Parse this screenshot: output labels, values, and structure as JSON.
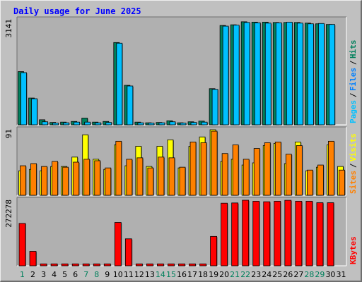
{
  "chart_data": {
    "type": "bar",
    "title": "Daily usage for June 2025",
    "x": [
      "1",
      "2",
      "3",
      "4",
      "5",
      "6",
      "7",
      "8",
      "9",
      "10",
      "11",
      "12",
      "13",
      "14",
      "15",
      "16",
      "17",
      "18",
      "19",
      "20",
      "21",
      "22",
      "23",
      "24",
      "25",
      "26",
      "27",
      "28",
      "29",
      "30",
      "31"
    ],
    "weekend_days": [
      1,
      7,
      8,
      14,
      15,
      21,
      22,
      28,
      29
    ],
    "panels": [
      {
        "id": "hits_files_pages",
        "max_label": "3141",
        "ymax": 3141,
        "legend": [
          {
            "name": "Pages",
            "color": "#00c0ff"
          },
          {
            "name": "Files",
            "color": "#0080ff"
          },
          {
            "name": "Hits",
            "color": "#00805c"
          }
        ],
        "series": [
          {
            "name": "Hits",
            "color": "#00805c",
            "values": [
              1590,
              800,
              150,
              70,
              80,
              100,
              200,
              80,
              100,
              2460,
              1180,
              80,
              60,
              70,
              120,
              60,
              90,
              110,
              1080,
              2970,
              2990,
              3080,
              3070,
              3070,
              3060,
              3060,
              3060,
              3040,
              3020,
              3000,
              0
            ]
          },
          {
            "name": "Files",
            "color": "#0080ff",
            "values": [
              0,
              0,
              0,
              0,
              0,
              0,
              0,
              0,
              0,
              0,
              0,
              0,
              0,
              0,
              0,
              0,
              0,
              0,
              0,
              0,
              0,
              0,
              0,
              0,
              0,
              0,
              0,
              0,
              0,
              0,
              0
            ]
          },
          {
            "name": "Pages",
            "color": "#00c0ff",
            "values": [
              1560,
              780,
              90,
              50,
              60,
              80,
              80,
              60,
              70,
              2440,
              1160,
              60,
              50,
              60,
              90,
              50,
              70,
              80,
              1060,
              2950,
              2980,
              3060,
              3050,
              3040,
              3050,
              3070,
              3040,
              3020,
              3030,
              3000,
              0
            ]
          }
        ]
      },
      {
        "id": "visits_sites",
        "max_label": "91",
        "ymax": 91,
        "legend": [
          {
            "name": "Sites",
            "color": "#ff8000"
          },
          {
            "name": "Visits",
            "color": "#ffff00"
          }
        ],
        "series": [
          {
            "name": "Visits",
            "color": "#ffff00",
            "values": [
              34,
              36,
              34,
              40,
              40,
              53,
              84,
              50,
              36,
              70,
              41,
              68,
              40,
              68,
              77,
              38,
              68,
              81,
              91,
              47,
              50,
              42,
              45,
              69,
              72,
              44,
              74,
              34,
              39,
              70,
              40
            ]
          },
          {
            "name": "Sites",
            "color": "#ff8000",
            "values": [
              41,
              44,
              40,
              47,
              39,
              46,
              50,
              48,
              38,
              75,
              50,
              52,
              38,
              53,
              52,
              39,
              74,
              73,
              89,
              58,
              70,
              50,
              65,
              73,
              74,
              57,
              69,
              35,
              42,
              75,
              35
            ]
          }
        ]
      },
      {
        "id": "kbytes",
        "max_label": "272278",
        "ymax": 272278,
        "legend": [
          {
            "name": "KBytes",
            "color": "#ff0000"
          }
        ],
        "series": [
          {
            "name": "KBytes",
            "color": "#ff0000",
            "values": [
              176000,
              60000,
              8000,
              8000,
              8000,
              8000,
              8000,
              8000,
              8000,
              180000,
              112000,
              8000,
              8000,
              8000,
              8000,
              8000,
              8000,
              8000,
              122000,
              260000,
              261000,
              272278,
              268000,
              266000,
              268000,
              272000,
              268000,
              268000,
              262000,
              262000,
              0
            ]
          }
        ]
      }
    ],
    "colors": {
      "title": "#0000ff",
      "plot_bg": "#b0b0b0",
      "weekday_label": "#000000",
      "weekend_label": "#00805c"
    }
  }
}
